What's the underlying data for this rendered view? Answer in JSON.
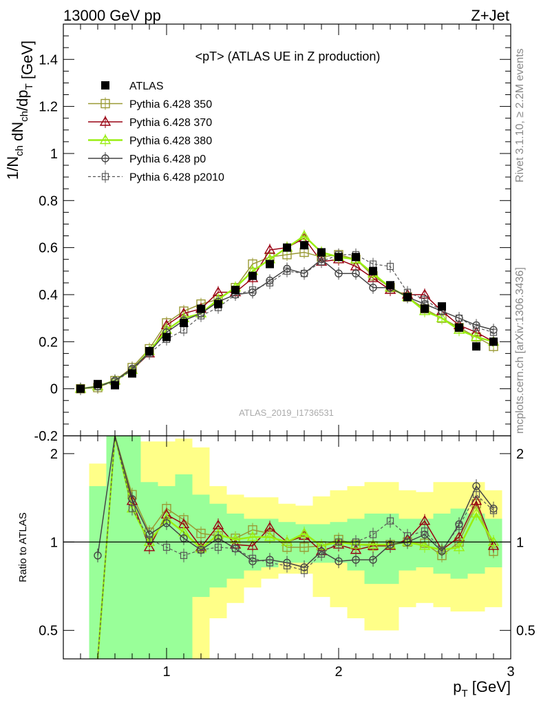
{
  "header": {
    "left": "13000 GeV pp",
    "right": "Z+Jet"
  },
  "side_labels": {
    "rivet": "Rivet 3.1.10, ≥ 2.2M events",
    "mcplots": "mcplots.cern.ch [arXiv:1306.3436]"
  },
  "colors": {
    "atlas": "#000000",
    "p350": "#999933",
    "p370": "#990011",
    "p380": "#99ee11",
    "p0": "#444444",
    "p2010": "#555555",
    "band_inner": "#99ff99",
    "band_outer": "#ffff88"
  },
  "chart_data": [
    {
      "type": "line",
      "title": "<pT> (ATLAS UE in Z production)",
      "xlabel": "p_T [GeV]",
      "ylabel": "1/N_ch dN_ch/dp_T [GeV]",
      "xlim": [
        0.4,
        3.0
      ],
      "ylim": [
        -0.2,
        1.55
      ],
      "yticks": [
        -0.2,
        0,
        0.2,
        0.4,
        0.6,
        0.8,
        1,
        1.2,
        1.4
      ],
      "ytick_labels": [
        "-0.2",
        "0",
        "0.2",
        "0.4",
        "0.6",
        "0.8",
        "1",
        "1.2",
        "1.4"
      ],
      "legend_position": "top-left",
      "watermark": "ATLAS_2019_I1736531",
      "x": [
        0.5,
        0.6,
        0.7,
        0.8,
        0.9,
        1.0,
        1.1,
        1.2,
        1.3,
        1.4,
        1.5,
        1.6,
        1.7,
        1.8,
        1.9,
        2.0,
        2.1,
        2.2,
        2.3,
        2.4,
        2.5,
        2.6,
        2.7,
        2.8,
        2.9
      ],
      "series": [
        {
          "name": "ATLAS",
          "key": "atlas",
          "values": [
            0.0,
            0.02,
            0.015,
            0.065,
            0.16,
            0.22,
            0.28,
            0.34,
            0.36,
            0.42,
            0.48,
            0.53,
            0.6,
            0.61,
            0.58,
            0.56,
            0.56,
            0.5,
            0.44,
            0.39,
            0.34,
            0.35,
            0.26,
            0.18,
            0.2
          ]
        },
        {
          "name": "Pythia 6.428 350",
          "key": "p350",
          "values": [
            0.0,
            0.005,
            0.035,
            0.09,
            0.17,
            0.28,
            0.33,
            0.36,
            0.38,
            0.43,
            0.53,
            0.56,
            0.57,
            0.58,
            0.56,
            0.57,
            0.55,
            0.48,
            0.43,
            0.39,
            0.34,
            0.3,
            0.26,
            0.22,
            0.18
          ]
        },
        {
          "name": "Pythia 6.428 370",
          "key": "p370",
          "values": [
            0.0,
            0.01,
            0.035,
            0.08,
            0.15,
            0.27,
            0.32,
            0.34,
            0.41,
            0.41,
            0.47,
            0.59,
            0.6,
            0.64,
            0.54,
            0.55,
            0.52,
            0.47,
            0.42,
            0.4,
            0.4,
            0.33,
            0.27,
            0.24,
            0.2
          ]
        },
        {
          "name": "Pythia 6.428 380",
          "key": "p380",
          "values": [
            0.0,
            0.01,
            0.035,
            0.08,
            0.16,
            0.25,
            0.3,
            0.32,
            0.38,
            0.43,
            0.5,
            0.55,
            0.6,
            0.65,
            0.58,
            0.56,
            0.55,
            0.49,
            0.43,
            0.39,
            0.33,
            0.3,
            0.25,
            0.22,
            0.2
          ]
        },
        {
          "name": "Pythia 6.428 p0",
          "key": "p0",
          "values": [
            0.0,
            0.01,
            0.035,
            0.085,
            0.155,
            0.24,
            0.29,
            0.32,
            0.37,
            0.4,
            0.41,
            0.46,
            0.51,
            0.49,
            0.55,
            0.49,
            0.49,
            0.43,
            0.43,
            0.39,
            0.36,
            0.33,
            0.3,
            0.27,
            0.25
          ]
        },
        {
          "name": "Pythia 6.428 p2010",
          "key": "p2010",
          "values": [
            0.0,
            0.01,
            0.03,
            0.08,
            0.15,
            0.21,
            0.25,
            0.31,
            0.345,
            0.4,
            0.42,
            0.45,
            0.5,
            0.49,
            0.54,
            0.57,
            0.57,
            0.53,
            0.52,
            0.41,
            0.38,
            0.33,
            0.3,
            0.26,
            0.24
          ]
        }
      ]
    },
    {
      "type": "line",
      "title": "",
      "xlabel": "p_T [GeV]",
      "ylabel": "Ratio to ATLAS",
      "xlim": [
        0.4,
        3.0
      ],
      "ylim": [
        0.4,
        2.3
      ],
      "log_y": true,
      "xticks": [
        1,
        2,
        3
      ],
      "xtick_labels": [
        "1",
        "2",
        "3"
      ],
      "yticks": [
        0.5,
        1,
        2
      ],
      "ytick_labels": [
        "0.5",
        "1",
        "2"
      ],
      "x": [
        0.6,
        0.7,
        0.8,
        0.9,
        1.0,
        1.1,
        1.2,
        1.3,
        1.4,
        1.5,
        1.6,
        1.7,
        1.8,
        1.9,
        2.0,
        2.1,
        2.2,
        2.3,
        2.4,
        2.5,
        2.6,
        2.7,
        2.8,
        2.9
      ],
      "band_x_edges": [
        0.55,
        0.65,
        0.75,
        0.85,
        0.95,
        1.05,
        1.15,
        1.25,
        1.35,
        1.45,
        1.55,
        1.65,
        1.75,
        1.85,
        1.95,
        2.05,
        2.15,
        2.25,
        2.35,
        2.45,
        2.55,
        2.65,
        2.75,
        2.85,
        2.95
      ],
      "band_inner": [
        [
          0.4,
          1.55
        ],
        [
          0.4,
          2.3
        ],
        [
          0.4,
          2.3
        ],
        [
          0.4,
          1.6
        ],
        [
          0.4,
          1.55
        ],
        [
          0.4,
          1.7
        ],
        [
          0.65,
          1.45
        ],
        [
          0.7,
          1.35
        ],
        [
          0.75,
          1.25
        ],
        [
          0.8,
          1.2
        ],
        [
          0.82,
          1.2
        ],
        [
          0.85,
          1.17
        ],
        [
          0.85,
          1.15
        ],
        [
          0.85,
          1.15
        ],
        [
          0.85,
          1.17
        ],
        [
          0.8,
          1.2
        ],
        [
          0.72,
          1.25
        ],
        [
          0.72,
          1.25
        ],
        [
          0.8,
          1.2
        ],
        [
          0.82,
          1.2
        ],
        [
          0.78,
          1.25
        ],
        [
          0.75,
          1.3
        ],
        [
          0.78,
          1.25
        ],
        [
          0.82,
          1.2
        ]
      ],
      "band_outer": [
        [
          0.4,
          1.85
        ],
        [
          0.4,
          2.3
        ],
        [
          0.4,
          2.3
        ],
        [
          0.4,
          2.2
        ],
        [
          0.4,
          2.2
        ],
        [
          0.4,
          2.25
        ],
        [
          0.4,
          2.1
        ],
        [
          0.55,
          1.55
        ],
        [
          0.62,
          1.45
        ],
        [
          0.7,
          1.42
        ],
        [
          0.75,
          1.42
        ],
        [
          0.78,
          1.35
        ],
        [
          0.78,
          1.33
        ],
        [
          0.65,
          1.43
        ],
        [
          0.6,
          1.5
        ],
        [
          0.55,
          1.55
        ],
        [
          0.5,
          1.6
        ],
        [
          0.5,
          1.6
        ],
        [
          0.6,
          1.5
        ],
        [
          0.62,
          1.48
        ],
        [
          0.6,
          1.6
        ],
        [
          0.58,
          1.6
        ],
        [
          0.58,
          1.6
        ],
        [
          0.6,
          1.5
        ]
      ],
      "series": [
        {
          "name": "Pythia 6.428 350",
          "key": "p350",
          "values": [
            0.3,
            2.3,
            1.45,
            1.08,
            1.3,
            1.19,
            1.07,
            1.05,
            1.03,
            1.1,
            1.07,
            0.96,
            0.96,
            0.97,
            1.02,
            0.98,
            0.97,
            0.98,
            1.0,
            0.99,
            0.9,
            1.0,
            1.35,
            0.93
          ]
        },
        {
          "name": "Pythia 6.428 370",
          "key": "p370",
          "values": [
            0.3,
            2.3,
            1.38,
            0.96,
            1.24,
            1.15,
            0.96,
            1.14,
            0.98,
            0.97,
            1.12,
            1.0,
            1.05,
            0.93,
            0.98,
            0.94,
            0.97,
            0.97,
            1.02,
            1.18,
            0.94,
            1.04,
            1.38,
            0.97
          ]
        },
        {
          "name": "Pythia 6.428 380",
          "key": "p380",
          "values": [
            0.3,
            2.3,
            1.3,
            1.0,
            1.2,
            1.08,
            0.95,
            1.06,
            1.02,
            1.04,
            1.04,
            1.0,
            1.07,
            0.97,
            1.0,
            0.98,
            0.98,
            0.98,
            1.0,
            0.97,
            0.94,
            0.96,
            1.25,
            1.0
          ]
        },
        {
          "name": "Pythia 6.428 p0",
          "key": "p0",
          "values": [
            0.9,
            2.3,
            1.4,
            1.06,
            1.16,
            1.03,
            0.94,
            1.03,
            0.95,
            0.86,
            0.87,
            0.85,
            0.82,
            0.93,
            0.86,
            0.87,
            0.87,
            0.98,
            1.0,
            1.06,
            0.93,
            1.15,
            1.55,
            1.3
          ]
        },
        {
          "name": "Pythia 6.428 p2010",
          "key": "p2010",
          "values": [
            0.3,
            2.3,
            1.3,
            1.02,
            0.96,
            0.9,
            0.94,
            0.96,
            0.95,
            0.88,
            0.85,
            0.83,
            0.8,
            0.91,
            1.0,
            1.0,
            1.06,
            1.18,
            1.05,
            1.09,
            0.94,
            1.13,
            1.45,
            1.28
          ]
        }
      ]
    }
  ]
}
